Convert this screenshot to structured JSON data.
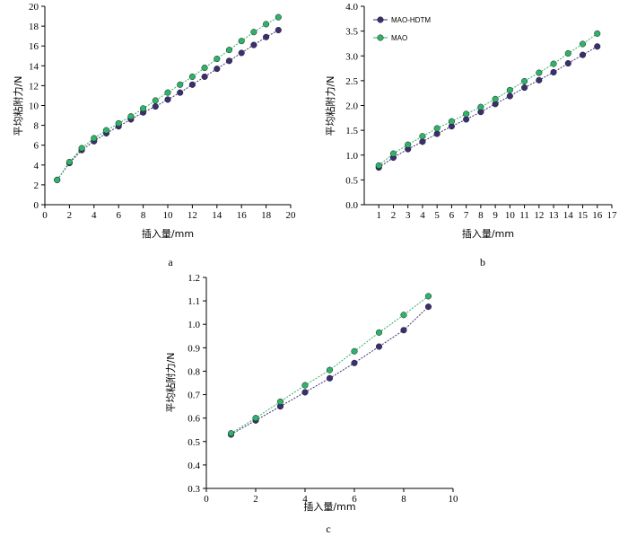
{
  "colors": {
    "mao_hdtm": "#3b2f73",
    "mao": "#2fb36a",
    "axis": "#000000"
  },
  "chart_data": [
    {
      "type": "line",
      "panel_label": "a",
      "xlabel": "插入量/mm",
      "ylabel": "平均粘附力/N",
      "xlim": [
        0,
        20
      ],
      "ylim": [
        0,
        20
      ],
      "xticks": [
        0,
        2,
        4,
        6,
        8,
        10,
        12,
        14,
        16,
        18,
        20
      ],
      "yticks": [
        0,
        2,
        4,
        6,
        8,
        10,
        12,
        14,
        16,
        18,
        20
      ],
      "ytick_decimals": 0,
      "legend": false,
      "x": [
        1,
        2,
        3,
        4,
        5,
        6,
        7,
        8,
        9,
        10,
        11,
        12,
        13,
        14,
        15,
        16,
        17,
        18,
        19
      ],
      "series": [
        {
          "name": "MAO-HDTM",
          "color_key": "mao_hdtm",
          "values": [
            2.5,
            4.2,
            5.5,
            6.4,
            7.2,
            7.9,
            8.6,
            9.3,
            9.9,
            10.6,
            11.3,
            12.1,
            12.9,
            13.7,
            14.5,
            15.3,
            16.1,
            16.9,
            17.6
          ]
        },
        {
          "name": "MAO",
          "color_key": "mao",
          "values": [
            2.5,
            4.3,
            5.7,
            6.7,
            7.5,
            8.2,
            8.9,
            9.7,
            10.5,
            11.3,
            12.1,
            12.9,
            13.8,
            14.7,
            15.6,
            16.5,
            17.4,
            18.2,
            18.9
          ]
        }
      ]
    },
    {
      "type": "line",
      "panel_label": "b",
      "xlabel": "插入量/mm",
      "ylabel": "平均粘附力/N",
      "xlim": [
        0,
        17
      ],
      "ylim": [
        0,
        4
      ],
      "xticks": [
        1,
        2,
        3,
        4,
        5,
        6,
        7,
        8,
        9,
        10,
        11,
        12,
        13,
        14,
        15,
        16,
        17
      ],
      "yticks": [
        0,
        0.5,
        1.0,
        1.5,
        2.0,
        2.5,
        3.0,
        3.5,
        4.0
      ],
      "ytick_decimals": 1,
      "legend": true,
      "legend_position": "top-left",
      "x": [
        1,
        2,
        3,
        4,
        5,
        6,
        7,
        8,
        9,
        10,
        11,
        12,
        13,
        14,
        15,
        16
      ],
      "series": [
        {
          "name": "MAO-HDTM",
          "color_key": "mao_hdtm",
          "values": [
            0.75,
            0.95,
            1.12,
            1.27,
            1.43,
            1.58,
            1.72,
            1.87,
            2.03,
            2.19,
            2.36,
            2.51,
            2.67,
            2.85,
            3.02,
            3.19
          ]
        },
        {
          "name": "MAO",
          "color_key": "mao",
          "values": [
            0.79,
            1.03,
            1.21,
            1.38,
            1.54,
            1.68,
            1.83,
            1.97,
            2.13,
            2.31,
            2.49,
            2.66,
            2.84,
            3.05,
            3.24,
            3.45
          ]
        }
      ]
    },
    {
      "type": "line",
      "panel_label": "c",
      "xlabel": "插入量/mm",
      "ylabel": "平均粘附力/N",
      "xlim": [
        0,
        10
      ],
      "ylim": [
        0.3,
        1.2
      ],
      "xticks": [
        0,
        2,
        4,
        6,
        8,
        10
      ],
      "yticks": [
        0.3,
        0.4,
        0.5,
        0.6,
        0.7,
        0.8,
        0.9,
        1.0,
        1.1,
        1.2
      ],
      "ytick_decimals": 1,
      "legend": false,
      "x": [
        1,
        2,
        3,
        4,
        5,
        6,
        7,
        8,
        9
      ],
      "series": [
        {
          "name": "MAO-HDTM",
          "color_key": "mao_hdtm",
          "values": [
            0.53,
            0.59,
            0.65,
            0.71,
            0.77,
            0.835,
            0.905,
            0.975,
            1.075
          ]
        },
        {
          "name": "MAO",
          "color_key": "mao",
          "values": [
            0.535,
            0.6,
            0.67,
            0.74,
            0.805,
            0.885,
            0.965,
            1.04,
            1.12
          ]
        }
      ]
    }
  ]
}
